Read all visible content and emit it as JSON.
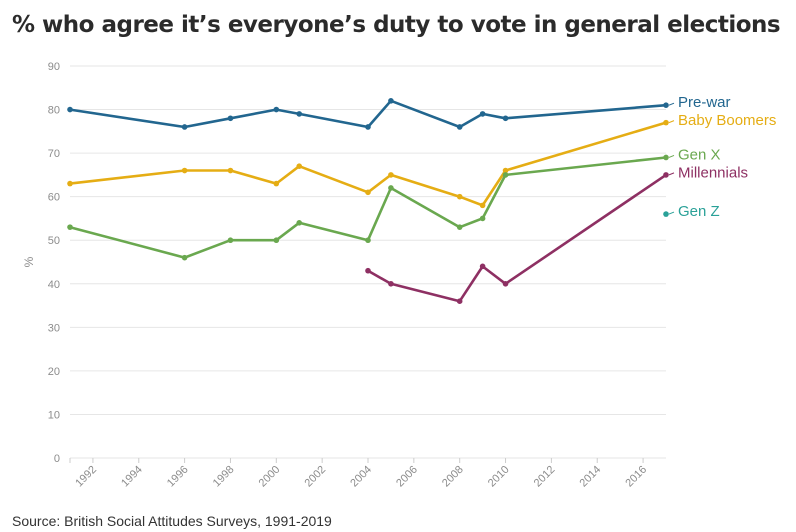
{
  "title": "% who agree it’s everyone’s duty to vote in general elections",
  "source": "Source: British Social Attitudes Surveys, 1991-2019",
  "chart_data": {
    "type": "line",
    "title": "% who agree it’s everyone’s duty to vote in general elections",
    "xlabel": "",
    "ylabel": "%",
    "xlim": [
      1991,
      2017
    ],
    "ylim": [
      0,
      90
    ],
    "x_ticks": [
      1992,
      1994,
      1996,
      1998,
      2000,
      2002,
      2004,
      2006,
      2008,
      2010,
      2012,
      2014,
      2016
    ],
    "y_ticks": [
      0,
      10,
      20,
      30,
      40,
      50,
      60,
      70,
      80,
      90
    ],
    "grid": "horizontal",
    "legend": "labels at line ends (right)",
    "series": [
      {
        "name": "Pre-war",
        "color": "#22668f",
        "points": [
          [
            1991,
            80
          ],
          [
            1996,
            76
          ],
          [
            1998,
            78
          ],
          [
            2000,
            80
          ],
          [
            2001,
            79
          ],
          [
            2004,
            76
          ],
          [
            2005,
            82
          ],
          [
            2008,
            76
          ],
          [
            2009,
            79
          ],
          [
            2010,
            78
          ],
          [
            2017,
            81
          ]
        ]
      },
      {
        "name": "Baby Boomers",
        "color": "#e5ad14",
        "points": [
          [
            1991,
            63
          ],
          [
            1996,
            66
          ],
          [
            1998,
            66
          ],
          [
            2000,
            63
          ],
          [
            2001,
            67
          ],
          [
            2004,
            61
          ],
          [
            2005,
            65
          ],
          [
            2008,
            60
          ],
          [
            2009,
            58
          ],
          [
            2010,
            66
          ],
          [
            2017,
            77
          ]
        ]
      },
      {
        "name": "Gen X",
        "color": "#6aa84f",
        "points": [
          [
            1991,
            53
          ],
          [
            1996,
            46
          ],
          [
            1998,
            50
          ],
          [
            2000,
            50
          ],
          [
            2001,
            54
          ],
          [
            2004,
            50
          ],
          [
            2005,
            62
          ],
          [
            2008,
            53
          ],
          [
            2009,
            55
          ],
          [
            2010,
            65
          ],
          [
            2017,
            69
          ]
        ]
      },
      {
        "name": "Millennials",
        "color": "#8e3063",
        "points": [
          [
            2004,
            43
          ],
          [
            2005,
            40
          ],
          [
            2008,
            36
          ],
          [
            2009,
            44
          ],
          [
            2010,
            40
          ],
          [
            2017,
            65
          ]
        ]
      },
      {
        "name": "Gen Z",
        "color": "#2aa198",
        "points": [
          [
            2017,
            56
          ]
        ]
      }
    ]
  }
}
